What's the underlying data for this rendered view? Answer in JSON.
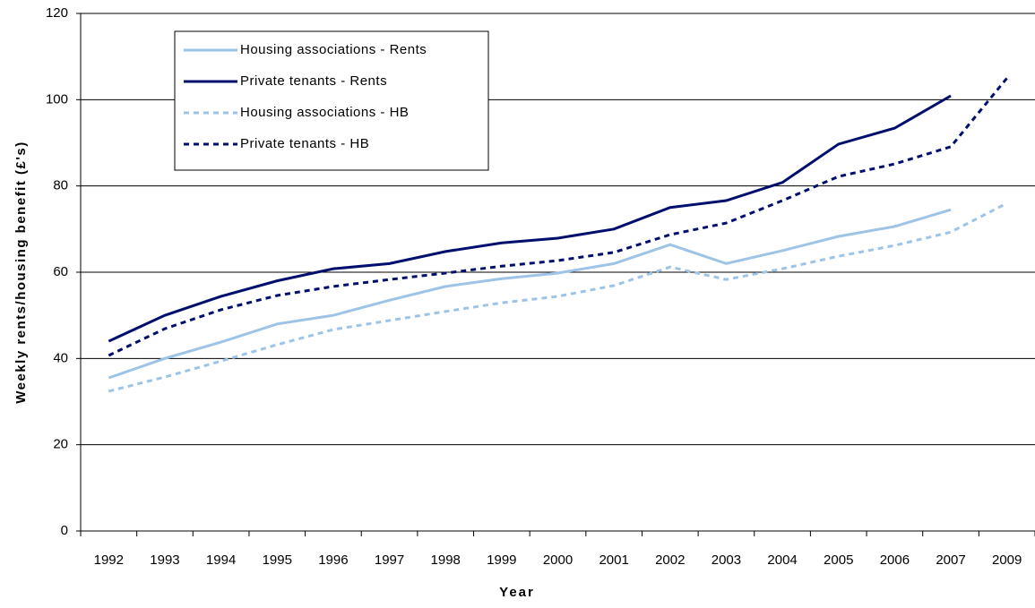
{
  "chart_data": {
    "type": "line",
    "x_label": "Year",
    "y_label": "Weekly rents/housing benefit (£'s)",
    "categories": [
      "1992",
      "1993",
      "1994",
      "1995",
      "1996",
      "1997",
      "1998",
      "1999",
      "2000",
      "2001",
      "2002",
      "2003",
      "2004",
      "2005",
      "2006",
      "2007",
      "2009"
    ],
    "series": [
      {
        "name": "Housing associations - Rents",
        "color": "#9dc3e6",
        "dash": false,
        "values": [
          35.5,
          40,
          43.8,
          48,
          50,
          53.5,
          56.7,
          58.5,
          59.8,
          62,
          66.4,
          62,
          65,
          68.3,
          70.6,
          74.5,
          null
        ]
      },
      {
        "name": "Private tenants - Rents",
        "color": "#000f6e",
        "dash": false,
        "values": [
          44,
          50,
          54.4,
          58,
          60.8,
          62,
          64.8,
          66.8,
          67.9,
          70,
          75,
          76.6,
          80.8,
          89.7,
          93.4,
          100.9,
          null
        ]
      },
      {
        "name": "Housing associations - HB",
        "color": "#9dc3e6",
        "dash": true,
        "values": [
          32.4,
          35.7,
          39.4,
          43.2,
          46.7,
          48.8,
          50.9,
          52.9,
          54.4,
          56.9,
          61.2,
          58.3,
          60.8,
          63.7,
          66.2,
          69.3,
          76
        ]
      },
      {
        "name": "Private tenants - HB",
        "color": "#000f6e",
        "dash": true,
        "values": [
          40.7,
          46.9,
          51.3,
          54.6,
          56.7,
          58.3,
          59.8,
          61.4,
          62.7,
          64.6,
          68.7,
          71.4,
          76.6,
          82.2,
          85.1,
          89.1,
          105
        ]
      }
    ],
    "ylim": [
      0,
      120
    ],
    "yticks": [
      0,
      20,
      40,
      60,
      80,
      100,
      120
    ],
    "grid": true
  }
}
